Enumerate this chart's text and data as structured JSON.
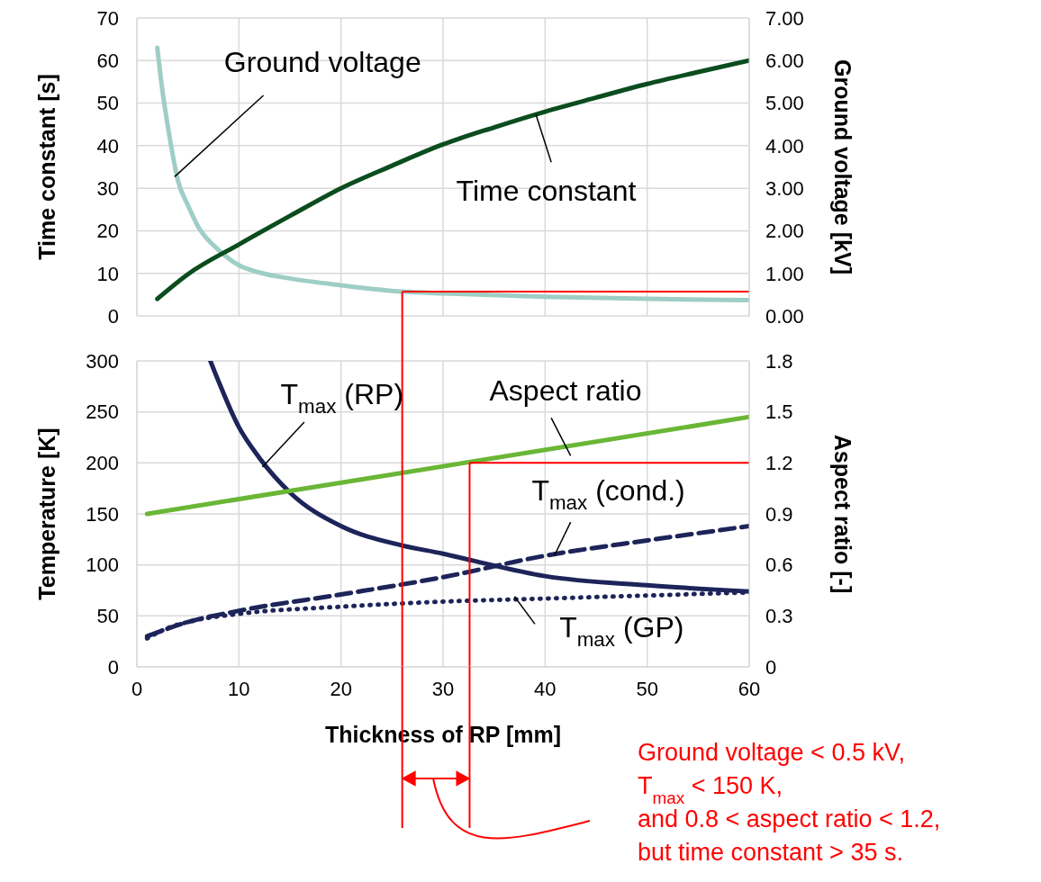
{
  "chart_data": [
    {
      "type": "line",
      "ylabel": "Time constant [s]",
      "y2label": "Ground voltage [kV]",
      "xlim": [
        0,
        60
      ],
      "xticks": [
        0,
        10,
        20,
        30,
        40,
        50,
        60
      ],
      "ylim": [
        0,
        70
      ],
      "yticks": [
        0,
        10,
        20,
        30,
        40,
        50,
        60,
        70
      ],
      "y2lim": [
        0,
        7
      ],
      "y2ticks": [
        {
          "value": 0,
          "label": "0.00"
        },
        {
          "value": 1,
          "label": "1.00"
        },
        {
          "value": 2,
          "label": "2.00"
        },
        {
          "value": 3,
          "label": "3.00"
        },
        {
          "value": 4,
          "label": "4.00"
        },
        {
          "value": 5,
          "label": "5.00"
        },
        {
          "value": 6,
          "label": "6.00"
        },
        {
          "value": 7,
          "label": "7.00"
        }
      ],
      "tick_labels": "y",
      "grid": true,
      "marker": "none",
      "series": [
        {
          "name": "Ground voltage",
          "color": "#9ecec5",
          "axis": "y2",
          "x": [
            2,
            2.5,
            3,
            3.5,
            4,
            5,
            6,
            8,
            10,
            12,
            15,
            20,
            26,
            30,
            40,
            50,
            60
          ],
          "values": [
            6.3,
            5.3,
            4.5,
            3.8,
            3.2,
            2.6,
            2.1,
            1.55,
            1.19,
            1.02,
            0.88,
            0.72,
            0.57,
            0.53,
            0.45,
            0.4,
            0.37
          ]
        },
        {
          "name": "Time constant",
          "color": "#0b4d1e",
          "x": [
            2,
            5,
            10,
            15,
            20,
            25,
            30,
            35,
            40,
            45,
            50,
            55,
            60
          ],
          "values": [
            4,
            9.8,
            16.8,
            23.5,
            30,
            35.3,
            40.3,
            44.3,
            48,
            51.3,
            54.5,
            57.3,
            60
          ]
        }
      ],
      "ref_lines": [
        {
          "axis": "x",
          "value": 26,
          "color": "#ff0000"
        },
        {
          "axis": "y2",
          "value": 0.57,
          "color": "#ff0000"
        }
      ]
    },
    {
      "type": "line",
      "xlabel": "Thickness of RP [mm]",
      "ylabel": "Temperature [K]",
      "y2label": "Aspect ratio [-]",
      "xlim": [
        0,
        60
      ],
      "xticks": [
        0,
        10,
        20,
        30,
        40,
        50,
        60
      ],
      "ylim": [
        0,
        300
      ],
      "yticks": [
        0,
        50,
        100,
        150,
        200,
        250,
        300
      ],
      "y2lim": [
        0,
        1.8
      ],
      "y2ticks": [
        0,
        0.3,
        0.6,
        0.9,
        1.2,
        1.5,
        1.8
      ],
      "grid": true,
      "marker": "none",
      "series": [
        {
          "name": "T$_{max}$ (RP)",
          "color": "#1d2459",
          "line_style": "solid",
          "x": [
            7.2,
            8,
            10,
            12,
            15,
            20,
            26,
            30,
            33,
            40,
            50,
            60
          ],
          "values": [
            300,
            280,
            235,
            205,
            171,
            138,
            119,
            111,
            104,
            89,
            80,
            74
          ]
        },
        {
          "name": "Aspect ratio",
          "color": "#6ab636",
          "axis": "y2",
          "line_style": "solid",
          "x": [
            1,
            60
          ],
          "values": [
            0.9,
            1.47
          ]
        },
        {
          "name": "T$_{max}$ (cond.)",
          "color": "#1d2459",
          "line_style": "dashed",
          "x": [
            1,
            5,
            10,
            20,
            30,
            40,
            50,
            60
          ],
          "values": [
            30,
            44,
            55,
            71,
            88,
            109,
            124,
            138
          ]
        },
        {
          "name": "T$_{max}$ (GP)",
          "color": "#1d2459",
          "line_style": "dotted",
          "x": [
            1,
            3,
            5,
            10,
            20,
            30,
            40,
            50,
            60
          ],
          "values": [
            28,
            38,
            44,
            52,
            59,
            64,
            67,
            70,
            73
          ]
        }
      ],
      "ref_lines": [
        {
          "axis": "x",
          "value": 26,
          "color": "#ff0000"
        },
        {
          "axis": "x",
          "value": 32.6,
          "color": "#ff0000"
        },
        {
          "axis": "y2",
          "value": 1.2,
          "color": "#ff0000"
        }
      ],
      "annotations": [
        "Ground voltage < 0.5 kV,",
        "T$_{max}$ < 150 K,",
        "and 0.8 < aspect ratio < 1.2,",
        "but time constant > 35 s."
      ]
    }
  ]
}
